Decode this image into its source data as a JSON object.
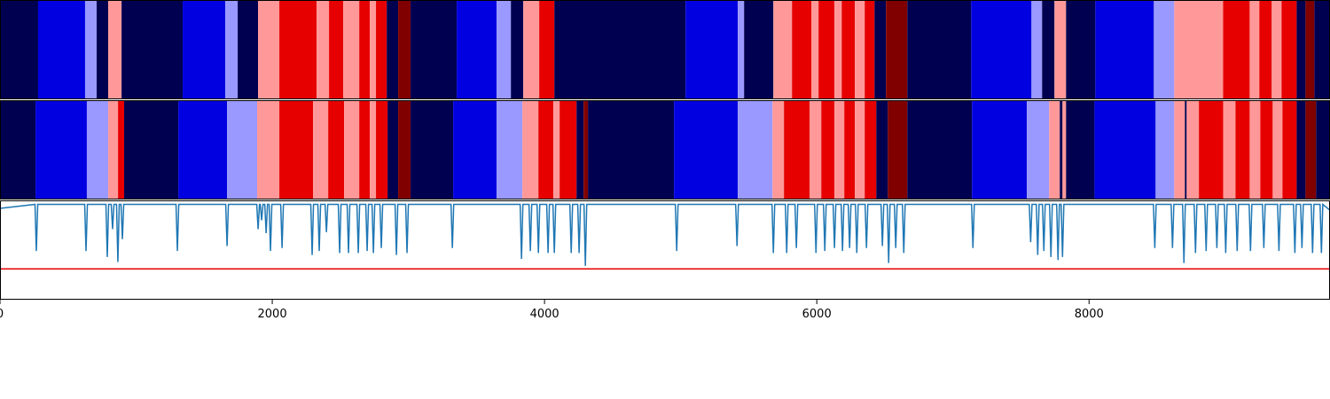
{
  "chart_data": {
    "type": "segmentation",
    "xlim": [
      0,
      9770
    ],
    "xticks": [
      0,
      2000,
      4000,
      6000,
      8000
    ],
    "state_colors": [
      "#000050",
      "#0000e0",
      "#9999ff",
      "#ff9999",
      "#e60000",
      "#800000"
    ],
    "rows": [
      {
        "edges": [
          0,
          280,
          625,
          710,
          795,
          893,
          1342,
          1655,
          1746,
          1896,
          2052,
          2326,
          2417,
          2521,
          2639,
          2717,
          2762,
          2841,
          2925,
          3016,
          3355,
          3648,
          3753,
          3844,
          3961,
          4072,
          5036,
          5420,
          5466,
          5681,
          5818,
          5961,
          6013,
          6130,
          6183,
          6280,
          6352,
          6424,
          6508,
          6665,
          7134,
          7577,
          7655,
          7746,
          7831,
          8046,
          8476,
          8626,
          8985,
          9180,
          9251,
          9342,
          9414,
          9525,
          9590,
          9655,
          9770
        ],
        "states": [
          0,
          1,
          2,
          0,
          3,
          0,
          1,
          2,
          0,
          3,
          4,
          3,
          4,
          3,
          4,
          3,
          4,
          0,
          5,
          0,
          1,
          2,
          0,
          3,
          4,
          0,
          1,
          2,
          0,
          3,
          4,
          3,
          4,
          3,
          4,
          3,
          4,
          0,
          5,
          0,
          1,
          2,
          0,
          3,
          0,
          1,
          2,
          3,
          4,
          3,
          4,
          3,
          4,
          0,
          5,
          0
        ]
      },
      {
        "edges": [
          0,
          261,
          638,
          795,
          867,
          912,
          1310,
          1668,
          1889,
          2052,
          2300,
          2411,
          2528,
          2639,
          2717,
          2762,
          2847,
          2925,
          3016,
          3329,
          3648,
          3837,
          3955,
          4065,
          4111,
          4235,
          4287,
          4319,
          4951,
          5420,
          5675,
          5759,
          5948,
          6033,
          6130,
          6202,
          6280,
          6352,
          6437,
          6522,
          6665,
          7140,
          7543,
          7707,
          7785,
          7805,
          7831,
          8040,
          8489,
          8626,
          8704,
          8717,
          8807,
          8985,
          9076,
          9180,
          9258,
          9349,
          9421,
          9525,
          9590,
          9668,
          9770
        ],
        "states": [
          0,
          1,
          2,
          3,
          4,
          0,
          1,
          2,
          3,
          4,
          3,
          4,
          3,
          4,
          3,
          4,
          0,
          5,
          0,
          1,
          2,
          3,
          4,
          3,
          4,
          0,
          5,
          0,
          1,
          2,
          3,
          4,
          3,
          4,
          3,
          4,
          3,
          4,
          0,
          5,
          0,
          1,
          2,
          3,
          0,
          3,
          0,
          1,
          2,
          3,
          0,
          3,
          4,
          3,
          4,
          3,
          4,
          3,
          4,
          0,
          5,
          0
        ]
      }
    ],
    "ylim": [
      0,
      1
    ],
    "threshold": 0.31,
    "threshold_color": "#e60000",
    "line": {
      "color": "#1f77b4",
      "x": [
        0,
        257,
        267,
        277,
        622,
        632,
        642,
        778,
        788,
        798,
        817,
        827,
        837,
        856,
        866,
        876,
        889,
        899,
        909,
        1293,
        1303,
        1313,
        1658,
        1668,
        1678,
        1886,
        1896,
        1906,
        1912,
        1922,
        1932,
        1945,
        1955,
        1965,
        1977,
        1987,
        1997,
        2062,
        2072,
        2082,
        2283,
        2293,
        2303,
        2335,
        2345,
        2355,
        2388,
        2398,
        2408,
        2485,
        2495,
        2505,
        2550,
        2560,
        2570,
        2622,
        2632,
        2642,
        2687,
        2697,
        2707,
        2733,
        2743,
        2753,
        2791,
        2801,
        2811,
        2902,
        2912,
        2922,
        2980,
        2990,
        3000,
        3313,
        3323,
        3333,
        3821,
        3831,
        3841,
        3886,
        3896,
        3906,
        3945,
        3955,
        3965,
        4016,
        4026,
        4036,
        4062,
        4072,
        4082,
        4186,
        4196,
        4206,
        4244,
        4254,
        4264,
        4290,
        4300,
        4310,
        4961,
        4971,
        4981,
        5404,
        5414,
        5424,
        5671,
        5681,
        5691,
        5769,
        5779,
        5789,
        5840,
        5850,
        5860,
        5984,
        5994,
        6004,
        6049,
        6059,
        6069,
        6120,
        6130,
        6140,
        6179,
        6189,
        6199,
        6231,
        6241,
        6251,
        6284,
        6294,
        6304,
        6355,
        6365,
        6375,
        6472,
        6482,
        6492,
        6518,
        6528,
        6538,
        6570,
        6580,
        6590,
        6629,
        6639,
        6649,
        7137,
        7147,
        7157,
        7561,
        7571,
        7581,
        7613,
        7623,
        7633,
        7658,
        7668,
        7678,
        7710,
        7720,
        7730,
        7762,
        7772,
        7782,
        7795,
        7805,
        7815,
        8473,
        8483,
        8493,
        8603,
        8613,
        8623,
        8687,
        8697,
        8707,
        8772,
        8782,
        8792,
        8850,
        8860,
        8870,
        8929,
        8939,
        8949,
        8994,
        9004,
        9014,
        9078,
        9088,
        9098,
        9176,
        9186,
        9196,
        9274,
        9284,
        9294,
        9385,
        9395,
        9405,
        9502,
        9512,
        9522,
        9554,
        9564,
        9574,
        9632,
        9642,
        9652,
        9697,
        9707,
        9717,
        9770
      ],
      "values": [
        0.92,
        0.96,
        0.49,
        0.96,
        0.96,
        0.49,
        0.96,
        0.96,
        0.43,
        0.96,
        0.96,
        0.71,
        0.96,
        0.96,
        0.38,
        0.96,
        0.96,
        0.61,
        0.96,
        0.96,
        0.49,
        0.96,
        0.96,
        0.54,
        0.96,
        0.96,
        0.71,
        0.96,
        0.96,
        0.8,
        0.96,
        0.96,
        0.67,
        0.96,
        0.96,
        0.49,
        0.96,
        0.96,
        0.52,
        0.96,
        0.96,
        0.45,
        0.96,
        0.96,
        0.49,
        0.96,
        0.96,
        0.68,
        0.96,
        0.96,
        0.47,
        0.96,
        0.96,
        0.47,
        0.96,
        0.96,
        0.47,
        0.96,
        0.96,
        0.49,
        0.96,
        0.96,
        0.47,
        0.96,
        0.96,
        0.52,
        0.96,
        0.96,
        0.45,
        0.96,
        0.96,
        0.47,
        0.96,
        0.96,
        0.52,
        0.96,
        0.96,
        0.41,
        0.96,
        0.96,
        0.49,
        0.96,
        0.96,
        0.47,
        0.96,
        0.96,
        0.47,
        0.96,
        0.96,
        0.47,
        0.96,
        0.96,
        0.47,
        0.96,
        0.96,
        0.47,
        0.96,
        0.96,
        0.34,
        0.96,
        0.96,
        0.49,
        0.96,
        0.96,
        0.54,
        0.96,
        0.96,
        0.47,
        0.96,
        0.96,
        0.47,
        0.96,
        0.96,
        0.52,
        0.96,
        0.96,
        0.47,
        0.96,
        0.96,
        0.49,
        0.96,
        0.96,
        0.52,
        0.96,
        0.96,
        0.49,
        0.96,
        0.96,
        0.52,
        0.96,
        0.96,
        0.47,
        0.96,
        0.96,
        0.52,
        0.96,
        0.96,
        0.54,
        0.96,
        0.96,
        0.37,
        0.96,
        0.96,
        0.52,
        0.96,
        0.96,
        0.47,
        0.96,
        0.96,
        0.52,
        0.96,
        0.96,
        0.58,
        0.96,
        0.96,
        0.45,
        0.96,
        0.96,
        0.49,
        0.96,
        0.96,
        0.43,
        0.96,
        0.96,
        0.4,
        0.96,
        0.96,
        0.43,
        0.96,
        0.96,
        0.52,
        0.96,
        0.96,
        0.52,
        0.96,
        0.96,
        0.37,
        0.96,
        0.96,
        0.47,
        0.96,
        0.96,
        0.49,
        0.96,
        0.96,
        0.52,
        0.96,
        0.96,
        0.47,
        0.96,
        0.96,
        0.49,
        0.96,
        0.96,
        0.49,
        0.96,
        0.96,
        0.52,
        0.96,
        0.96,
        0.49,
        0.96,
        0.96,
        0.47,
        0.96,
        0.96,
        0.52,
        0.96,
        0.96,
        0.47,
        0.96,
        0.96,
        0.47,
        0.96,
        0.9
      ]
    }
  }
}
